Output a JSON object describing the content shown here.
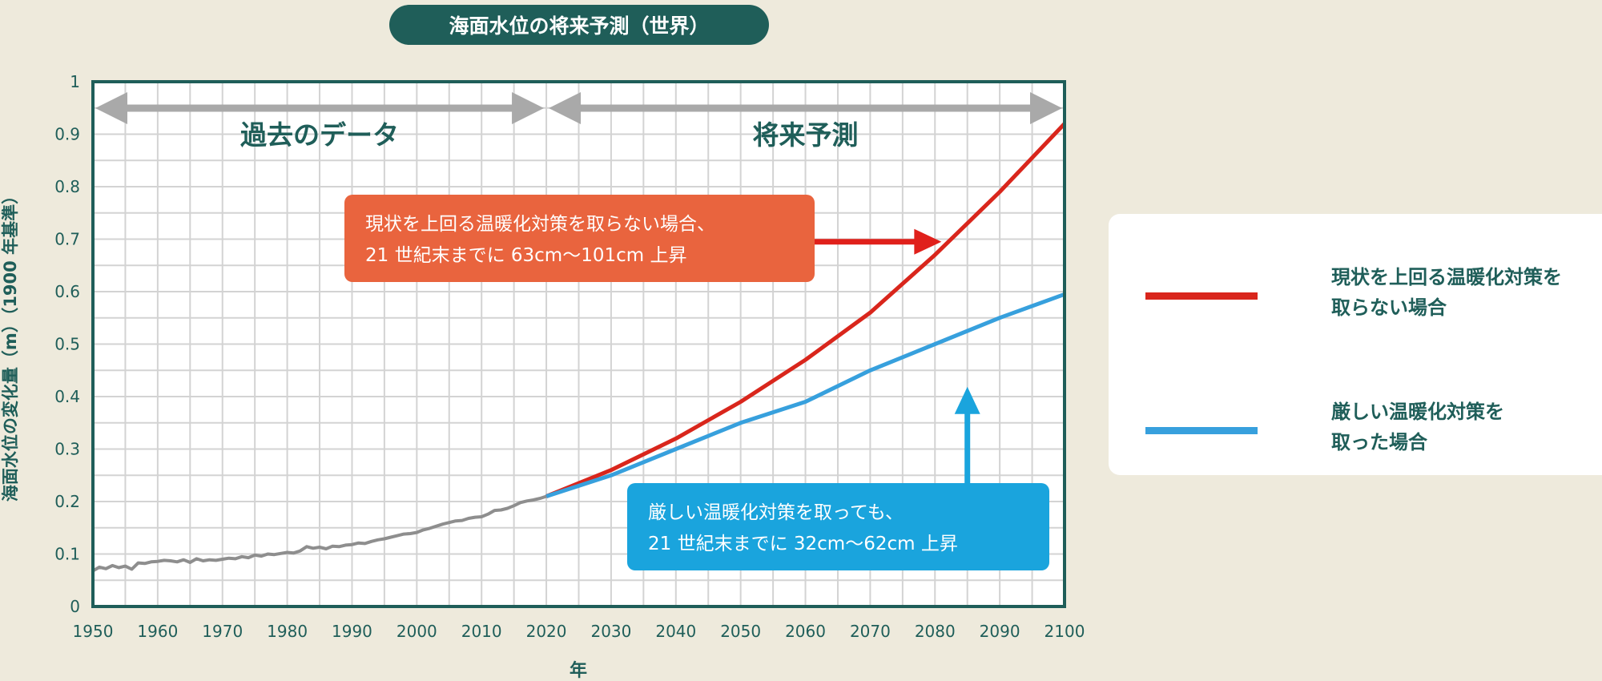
{
  "title": "海面水位の将来予測（世界）",
  "chart_data": {
    "type": "line",
    "xlabel": "年",
    "ylabel": "海面水位の変化量（m）（1900 年基準）",
    "xlim": [
      1950,
      2100
    ],
    "ylim": [
      0,
      1
    ],
    "x_ticks": [
      "1950",
      "1960",
      "1970",
      "1980",
      "1990",
      "2000",
      "2010",
      "2020",
      "2030",
      "2040",
      "2050",
      "2060",
      "2070",
      "2080",
      "2090",
      "2100"
    ],
    "y_ticks": [
      "0",
      "0.1",
      "0.2",
      "0.3",
      "0.4",
      "0.5",
      "0.6",
      "0.7",
      "0.8",
      "0.9",
      "1"
    ],
    "grid": true,
    "periods": [
      {
        "label": "過去のデータ",
        "from": 1950,
        "to": 2020
      },
      {
        "label": "将来予測",
        "from": 2020,
        "to": 2100
      }
    ],
    "series": [
      {
        "name": "",
        "color": "#8e8e8e",
        "x": [
          1950,
          1951,
          1952,
          1953,
          1954,
          1955,
          1956,
          1957,
          1958,
          1959,
          1960,
          1961,
          1962,
          1963,
          1964,
          1965,
          1966,
          1967,
          1968,
          1969,
          1970,
          1971,
          1972,
          1973,
          1974,
          1975,
          1976,
          1977,
          1978,
          1979,
          1980,
          1981,
          1982,
          1983,
          1984,
          1985,
          1986,
          1987,
          1988,
          1989,
          1990,
          1991,
          1992,
          1993,
          1994,
          1995,
          1996,
          1997,
          1998,
          1999,
          2000,
          2001,
          2002,
          2003,
          2004,
          2005,
          2006,
          2007,
          2008,
          2009,
          2010,
          2011,
          2012,
          2013,
          2014,
          2015,
          2016,
          2017,
          2018,
          2019,
          2020
        ],
        "values": [
          0.068,
          0.075,
          0.072,
          0.078,
          0.074,
          0.077,
          0.071,
          0.083,
          0.082,
          0.085,
          0.086,
          0.088,
          0.087,
          0.085,
          0.089,
          0.084,
          0.091,
          0.087,
          0.089,
          0.088,
          0.09,
          0.092,
          0.091,
          0.095,
          0.093,
          0.098,
          0.096,
          0.1,
          0.099,
          0.101,
          0.103,
          0.102,
          0.106,
          0.114,
          0.111,
          0.113,
          0.11,
          0.115,
          0.114,
          0.117,
          0.118,
          0.121,
          0.12,
          0.124,
          0.127,
          0.129,
          0.132,
          0.135,
          0.138,
          0.139,
          0.141,
          0.146,
          0.149,
          0.153,
          0.157,
          0.16,
          0.163,
          0.164,
          0.168,
          0.17,
          0.171,
          0.176,
          0.183,
          0.184,
          0.187,
          0.192,
          0.198,
          0.201,
          0.203,
          0.206,
          0.21
        ]
      },
      {
        "name": "現状を上回る温暖化対策を取らない場合",
        "color": "#d9261c",
        "x": [
          2020,
          2030,
          2040,
          2050,
          2060,
          2070,
          2080,
          2090,
          2100
        ],
        "values": [
          0.21,
          0.26,
          0.32,
          0.39,
          0.47,
          0.56,
          0.67,
          0.79,
          0.92
        ]
      },
      {
        "name": "厳しい温暖化対策を取った場合",
        "color": "#37a0dd",
        "x": [
          2020,
          2030,
          2040,
          2050,
          2060,
          2070,
          2080,
          2090,
          2100
        ],
        "values": [
          0.21,
          0.25,
          0.3,
          0.35,
          0.39,
          0.45,
          0.5,
          0.55,
          0.595
        ]
      }
    ],
    "annotations": [
      {
        "lines": [
          "現状を上回る温暖化対策を取らない場合、",
          "21 世紀末までに 63cm～101cm 上昇"
        ],
        "color": "#e9643e",
        "target": {
          "x": 2081,
          "y": 0.695
        }
      },
      {
        "lines": [
          "厳しい温暖化対策を取っても、",
          "21 世紀末までに 32cm～62cm 上昇"
        ],
        "color": "#1aa4dd",
        "target": {
          "x": 2085,
          "y": 0.495
        }
      }
    ],
    "legend": {
      "placement": "right",
      "items": [
        {
          "lines": [
            "現状を上回る温暖化対策を",
            "取らない場合"
          ],
          "color": "#d9261c"
        },
        {
          "lines": [
            "厳しい温暖化対策を",
            "取った場合"
          ],
          "color": "#37a0dd"
        }
      ]
    }
  }
}
